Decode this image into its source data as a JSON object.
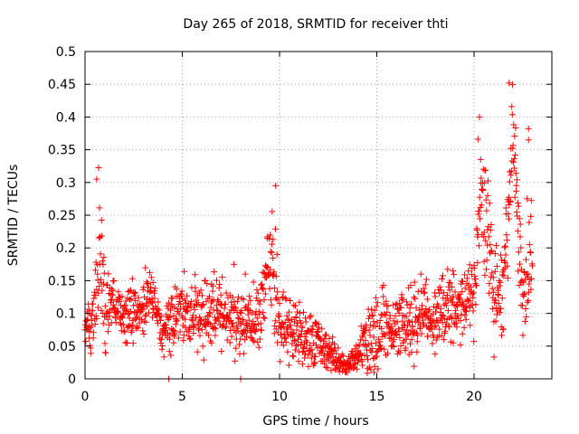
{
  "chart_data": {
    "type": "scatter",
    "title": "Day 265 of 2018, SRMTID for receiver thti",
    "xlabel": "GPS time / hours",
    "ylabel": "SRMTID / TECUs",
    "xlim": [
      0,
      24
    ],
    "ylim": [
      0,
      0.5
    ],
    "x_ticks": [
      0,
      5,
      10,
      15,
      20
    ],
    "x_tick_labels": [
      "0",
      "5",
      "10",
      "15",
      "20"
    ],
    "y_ticks": [
      0,
      0.05,
      0.1,
      0.15,
      0.2,
      0.25,
      0.3,
      0.35,
      0.4,
      0.45,
      0.5
    ],
    "y_tick_labels": [
      "0",
      "0.05",
      "0.1",
      "0.15",
      "0.2",
      "0.25",
      "0.3",
      "0.35",
      "0.4",
      "0.45",
      "0.5"
    ],
    "grid": true,
    "marker": "+",
    "series": [
      {
        "name": "SRMTID",
        "color": "#ff0000",
        "envelope_hours": [
          0,
          0.5,
          0.7,
          1,
          1.5,
          2,
          3,
          3.5,
          4,
          5,
          6,
          7,
          8,
          9,
          9.6,
          10,
          11,
          12,
          13,
          13.5,
          14,
          15,
          16,
          17,
          18,
          19,
          20,
          20.3,
          21,
          21.5,
          22,
          22.5,
          23
        ],
        "envelope_mean": [
          0.08,
          0.1,
          0.2,
          0.11,
          0.11,
          0.1,
          0.11,
          0.13,
          0.07,
          0.11,
          0.1,
          0.1,
          0.09,
          0.1,
          0.2,
          0.08,
          0.07,
          0.05,
          0.03,
          0.02,
          0.04,
          0.08,
          0.08,
          0.09,
          0.1,
          0.11,
          0.12,
          0.3,
          0.14,
          0.12,
          0.38,
          0.1,
          0.22
        ],
        "envelope_spread": [
          0.03,
          0.05,
          0.09,
          0.05,
          0.04,
          0.04,
          0.04,
          0.04,
          0.03,
          0.05,
          0.05,
          0.05,
          0.05,
          0.05,
          0.09,
          0.05,
          0.04,
          0.03,
          0.02,
          0.015,
          0.02,
          0.06,
          0.05,
          0.05,
          0.05,
          0.05,
          0.06,
          0.1,
          0.08,
          0.05,
          0.08,
          0.05,
          0.13
        ],
        "isolated_points": [
          [
            4.3,
            0.0
          ],
          [
            8.0,
            0.0
          ],
          [
            0.6,
            0.305
          ],
          [
            9.8,
            0.295
          ],
          [
            20.2,
            0.366
          ],
          [
            21.8,
            0.452
          ],
          [
            22.8,
            0.382
          ],
          [
            22.8,
            0.365
          ]
        ]
      }
    ]
  }
}
